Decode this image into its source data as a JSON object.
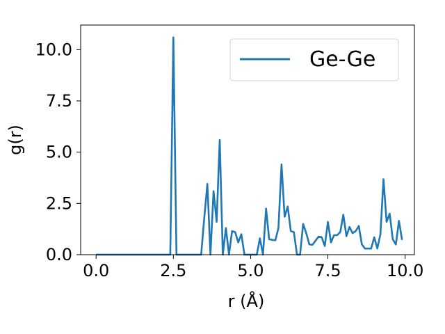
{
  "chart_data": {
    "type": "line",
    "title": "",
    "xlabel": "r (Å)",
    "ylabel": "g(r)",
    "xlim": [
      -0.5,
      10.3
    ],
    "ylim": [
      0,
      11.2
    ],
    "xticks": [
      0.0,
      2.5,
      5.0,
      7.5,
      10.0
    ],
    "xtick_labels": [
      "0.0",
      "2.5",
      "5.0",
      "7.5",
      "10.0"
    ],
    "yticks": [
      0.0,
      2.5,
      5.0,
      7.5,
      10.0
    ],
    "ytick_labels": [
      "0.0",
      "2.5",
      "5.0",
      "7.5",
      "10.0"
    ],
    "grid": false,
    "legend_position": "top-right",
    "series": [
      {
        "name": "Ge-Ge",
        "color": "#1f77b4",
        "x": [
          0.0,
          0.1,
          0.2,
          0.3,
          0.4,
          0.5,
          0.6,
          0.7,
          0.8,
          0.9,
          1.0,
          1.1,
          1.2,
          1.3,
          1.4,
          1.5,
          1.6,
          1.7,
          1.8,
          1.9,
          2.0,
          2.1,
          2.2,
          2.3,
          2.4,
          2.5,
          2.6,
          2.7,
          2.8,
          2.9,
          3.0,
          3.1,
          3.2,
          3.3,
          3.4,
          3.5,
          3.6,
          3.7,
          3.8,
          3.9,
          4.0,
          4.1,
          4.2,
          4.3,
          4.4,
          4.5,
          4.6,
          4.7,
          4.8,
          4.9,
          5.0,
          5.1,
          5.2,
          5.3,
          5.4,
          5.5,
          5.6,
          5.7,
          5.8,
          5.9,
          6.0,
          6.1,
          6.2,
          6.3,
          6.4,
          6.5,
          6.6,
          6.7,
          6.8,
          6.9,
          7.0,
          7.1,
          7.2,
          7.3,
          7.4,
          7.5,
          7.6,
          7.7,
          7.8,
          7.9,
          8.0,
          8.1,
          8.2,
          8.3,
          8.4,
          8.5,
          8.6,
          8.7,
          8.8,
          8.9,
          9.0,
          9.1,
          9.2,
          9.3,
          9.4,
          9.5,
          9.6,
          9.7,
          9.8,
          9.9
        ],
        "y": [
          0,
          0,
          0,
          0,
          0,
          0,
          0,
          0,
          0,
          0,
          0,
          0,
          0,
          0,
          0,
          0,
          0,
          0,
          0,
          0,
          0,
          0,
          0,
          0,
          0,
          10.6,
          0,
          0,
          0,
          0,
          0,
          0,
          0,
          0,
          0,
          1.8,
          3.45,
          0,
          3.1,
          1.6,
          5.6,
          0,
          1.3,
          0,
          1.15,
          1.1,
          0.6,
          1.0,
          0,
          0,
          0,
          0,
          0,
          0.8,
          0,
          2.25,
          0.75,
          0.72,
          0.7,
          1.3,
          4.4,
          1.85,
          2.35,
          1.15,
          1.1,
          0,
          0,
          1.5,
          1.05,
          0.5,
          0.48,
          0.68,
          0.88,
          0.85,
          0.42,
          1.6,
          0.6,
          0.95,
          0.95,
          1.1,
          1.95,
          0.9,
          1.35,
          1.05,
          1.15,
          1.4,
          0.5,
          0.3,
          0.3,
          0.3,
          0.85,
          0.3,
          1.0,
          3.68,
          1.6,
          2.0,
          0.75,
          0.5,
          1.65,
          0.72
        ]
      }
    ]
  }
}
